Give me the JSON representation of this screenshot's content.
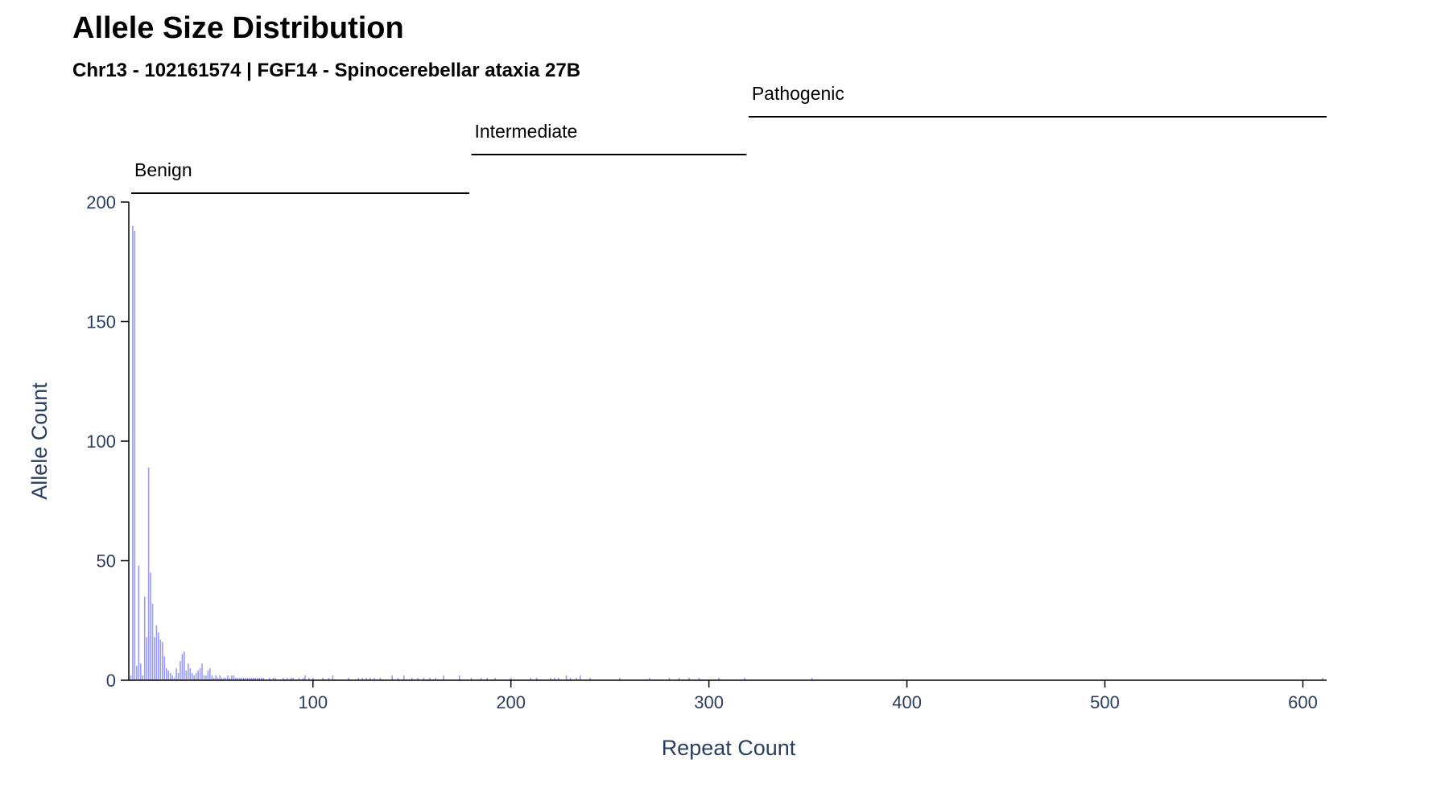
{
  "chart_data": {
    "type": "bar",
    "title": "Allele Size Distribution",
    "subtitle": "Chr13 - 102161574 | FGF14 - Spinocerebellar ataxia 27B",
    "xlabel": "Repeat Count",
    "ylabel": "Allele Count",
    "xlim": [
      7,
      612
    ],
    "ylim": [
      0,
      200
    ],
    "x_ticks": [
      100,
      200,
      300,
      400,
      500,
      600
    ],
    "y_ticks": [
      0,
      50,
      100,
      150,
      200
    ],
    "grid": false,
    "bar_color": "#9a9cf0",
    "regions": [
      {
        "label": "Benign",
        "start": 8,
        "end": 179
      },
      {
        "label": "Intermediate",
        "start": 180,
        "end": 319
      },
      {
        "label": "Pathogenic",
        "start": 320,
        "end": 612
      }
    ],
    "x": [
      8,
      9,
      10,
      11,
      12,
      13,
      14,
      15,
      16,
      17,
      18,
      19,
      20,
      21,
      22,
      23,
      24,
      25,
      26,
      27,
      28,
      29,
      30,
      31,
      32,
      33,
      34,
      35,
      36,
      37,
      38,
      39,
      40,
      41,
      42,
      43,
      44,
      45,
      46,
      47,
      48,
      49,
      50,
      51,
      52,
      53,
      54,
      55,
      56,
      57,
      58,
      59,
      60,
      61,
      62,
      63,
      64,
      65,
      66,
      67,
      68,
      69,
      70,
      71,
      72,
      73,
      74,
      75,
      78,
      80,
      81,
      85,
      87,
      89,
      90,
      93,
      95,
      96,
      98,
      100,
      105,
      108,
      110,
      118,
      123,
      125,
      127,
      129,
      131,
      134,
      140,
      143,
      146,
      150,
      153,
      156,
      159,
      162,
      166,
      174,
      180,
      185,
      188,
      192,
      200,
      210,
      213,
      220,
      222,
      224,
      228,
      230,
      233,
      235,
      240,
      255,
      270,
      280,
      285,
      290,
      295,
      305,
      318,
      352,
      610
    ],
    "values": [
      2,
      190,
      188,
      6,
      48,
      7,
      2,
      35,
      18,
      89,
      45,
      32,
      18,
      23,
      20,
      17,
      16,
      10,
      5,
      4,
      3,
      2,
      1,
      5,
      3,
      8,
      11,
      12,
      4,
      7,
      5,
      3,
      2,
      3,
      4,
      5,
      7,
      2,
      2,
      4,
      5,
      2,
      1,
      2,
      1,
      2,
      1,
      1,
      1,
      2,
      1,
      2,
      2,
      1,
      1,
      1,
      1,
      1,
      1,
      1,
      1,
      1,
      1,
      1,
      1,
      1,
      1,
      1,
      1,
      1,
      1,
      1,
      1,
      1,
      1,
      1,
      1,
      2,
      1,
      1,
      1,
      1,
      2,
      1,
      1,
      1,
      1,
      1,
      1,
      1,
      2,
      1,
      2,
      1,
      1,
      1,
      1,
      1,
      2,
      2,
      1,
      1,
      1,
      1,
      1,
      1,
      1,
      1,
      1,
      1,
      2,
      1,
      1,
      2,
      1,
      1,
      1,
      1,
      1,
      1,
      1,
      1,
      1,
      1,
      1
    ]
  }
}
